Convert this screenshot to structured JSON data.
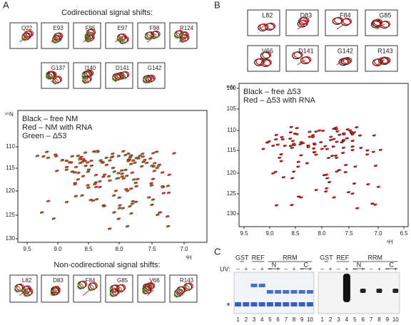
{
  "panel_a": {
    "label": "A",
    "codirectional": {
      "title": "Codirectional signal shifts:",
      "insets": [
        "Q22",
        "E93",
        "F95",
        "E97",
        "F98",
        "R124",
        "G137",
        "I140",
        "D141",
        "G142"
      ]
    },
    "spectrum": {
      "legend": [
        "Black – free NM",
        "Red – NM with RNA",
        "Green – Δ53"
      ],
      "x_ticks": [
        "9.5",
        "9.0",
        "8.5",
        "8.0",
        "7.5",
        "7.0"
      ],
      "y_ticks": [
        "110",
        "115",
        "120",
        "125",
        "130"
      ],
      "x_label": "¹H",
      "y_label": "¹⁵N"
    },
    "noncodirectional": {
      "title": "Non-codirectional signal shifts:",
      "insets": [
        "L82",
        "D83",
        "F84",
        "G85",
        "V66",
        "R143"
      ]
    }
  },
  "panel_b": {
    "label": "B",
    "insets": [
      "L82",
      "D83",
      "F84",
      "G85",
      "V66",
      "D141",
      "G142",
      "R143"
    ],
    "spectrum": {
      "legend": [
        "Black – free Δ53",
        "Red – Δ53 with RNA"
      ],
      "x_ticks": [
        "9.5",
        "9.0",
        "8.5",
        "8.0",
        "7.5",
        "7.0",
        "6.5"
      ],
      "y_ticks": [
        "100",
        "105",
        "110",
        "115",
        "120",
        "125",
        "130"
      ],
      "x_label": "¹H",
      "y_label": "¹⁵N"
    }
  },
  "panel_c": {
    "label": "C",
    "groups": [
      "GST",
      "REF",
      "RRM",
      "N",
      "C"
    ],
    "uv_label": "UV:",
    "uv_signs": [
      "–",
      "+",
      "–",
      "+",
      "–",
      "+",
      "–",
      "+",
      "–",
      "+"
    ],
    "lanes": [
      "1",
      "2",
      "3",
      "4",
      "5",
      "6",
      "7",
      "8",
      "9",
      "10"
    ],
    "marker": "*"
  }
}
